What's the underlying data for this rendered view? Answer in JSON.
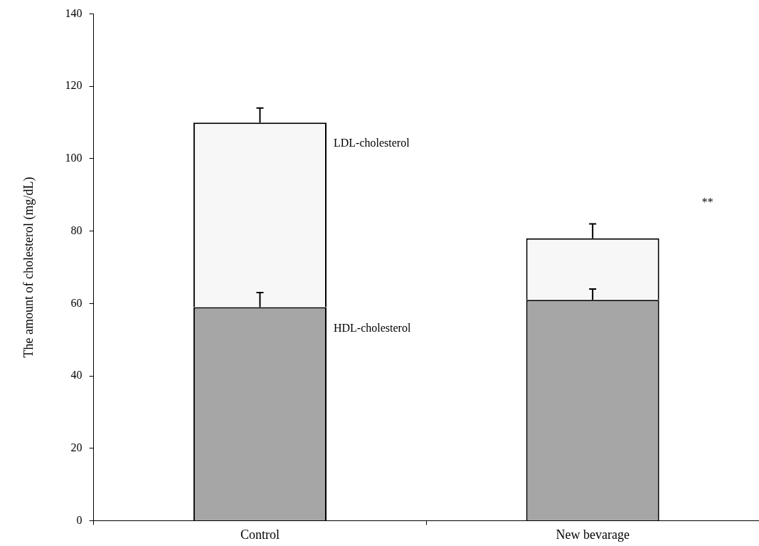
{
  "chart_data": {
    "type": "bar",
    "stacked": true,
    "ylabel": "The amount of cholesterol (mg/dL)",
    "categories": [
      "Control",
      "New bevarage"
    ],
    "series": [
      {
        "name": "HDL-cholesterol",
        "color": "#a6a6a6",
        "values": [
          59,
          61
        ],
        "errors": [
          4,
          3
        ]
      },
      {
        "name": "LDL-cholesterol",
        "color": "#f7f7f7",
        "values": [
          51,
          17
        ],
        "errors": [
          4,
          4
        ]
      }
    ],
    "ylim": [
      0,
      140
    ],
    "yticks": [
      0,
      20,
      40,
      60,
      80,
      100,
      120,
      140
    ],
    "grid": false,
    "legend": false,
    "annotations": [
      "**"
    ]
  }
}
